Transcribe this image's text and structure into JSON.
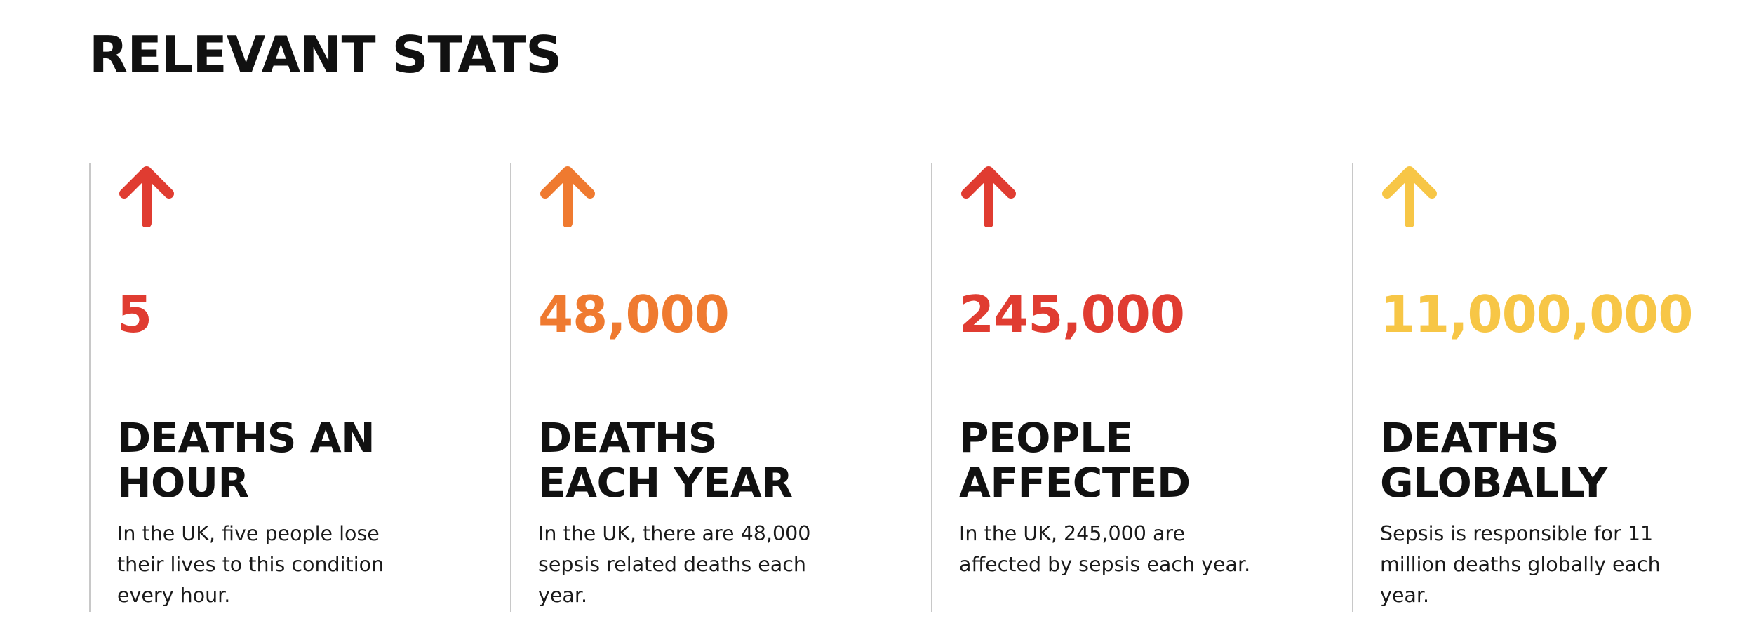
{
  "section": {
    "title": "RELEVANT STATS"
  },
  "stats": [
    {
      "value": "5",
      "label_lines": [
        "DEATHS AN",
        "HOUR"
      ],
      "description": "In the UK, five people lose their lives to this condition every hour.",
      "color": "#e03c31",
      "icon": "arrow-up-icon"
    },
    {
      "value": "48,000",
      "label_lines": [
        "DEATHS",
        "EACH YEAR"
      ],
      "description": "In the UK, there are 48,000 sepsis related deaths each year.",
      "color": "#ef7a30",
      "icon": "arrow-up-icon"
    },
    {
      "value": "245,000",
      "label_lines": [
        "PEOPLE",
        "AFFECTED"
      ],
      "description": "In the UK, 245,000 are affected by sepsis each year.",
      "color": "#e03c31",
      "icon": "arrow-up-icon"
    },
    {
      "value": "11,000,000",
      "label_lines": [
        "DEATHS",
        "GLOBALLY"
      ],
      "description": "Sepsis is responsible for 11 million deaths globally each year.",
      "color": "#f7c646",
      "icon": "arrow-up-icon"
    }
  ]
}
